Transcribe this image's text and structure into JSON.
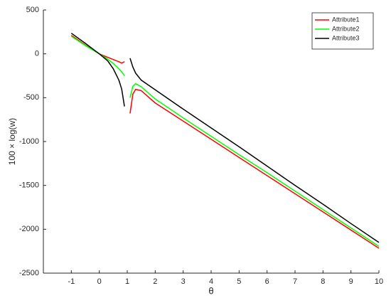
{
  "chart_data": {
    "type": "line",
    "x": [
      -1,
      -0.5,
      0,
      0.3,
      0.5,
      0.7,
      0.8,
      0.9,
      1,
      1.1,
      1.2,
      1.3,
      1.5,
      2,
      3,
      4,
      5,
      6,
      7,
      8,
      9,
      10
    ],
    "series": [
      {
        "name": "Attribute1",
        "color": "#ff0000",
        "values": [
          210,
          100,
          0,
          -40,
          -65,
          -90,
          -105,
          -90,
          null,
          -680,
          -460,
          -405,
          -420,
          -560,
          -767,
          -974,
          -1181,
          -1388,
          -1595,
          -1802,
          -2009,
          -2216
        ]
      },
      {
        "name": "Attribute2",
        "color": "#00ff00",
        "values": [
          200,
          95,
          0,
          -60,
          -110,
          -170,
          -205,
          -250,
          null,
          -500,
          -370,
          -340,
          -375,
          -515,
          -730,
          -940,
          -1150,
          -1355,
          -1565,
          -1775,
          -1985,
          -2195
        ]
      },
      {
        "name": "Attribute3",
        "color": "#000000",
        "values": [
          235,
          120,
          0,
          -80,
          -170,
          -300,
          -400,
          -600,
          null,
          -50,
          -150,
          -220,
          -300,
          -410,
          -630,
          -845,
          -1060,
          -1280,
          -1500,
          -1715,
          -1935,
          -2150
        ]
      }
    ],
    "xlabel": "θ",
    "ylabel": "100 × log(w)",
    "xlim": [
      -2,
      10
    ],
    "xticks": [
      -1,
      0,
      1,
      2,
      3,
      4,
      5,
      6,
      7,
      8,
      9,
      10
    ],
    "ylim": [
      -2500,
      500
    ],
    "yticks": [
      -2500,
      -2000,
      -1500,
      -1000,
      -500,
      0,
      500
    ],
    "grid": false,
    "legend": "top-right"
  }
}
